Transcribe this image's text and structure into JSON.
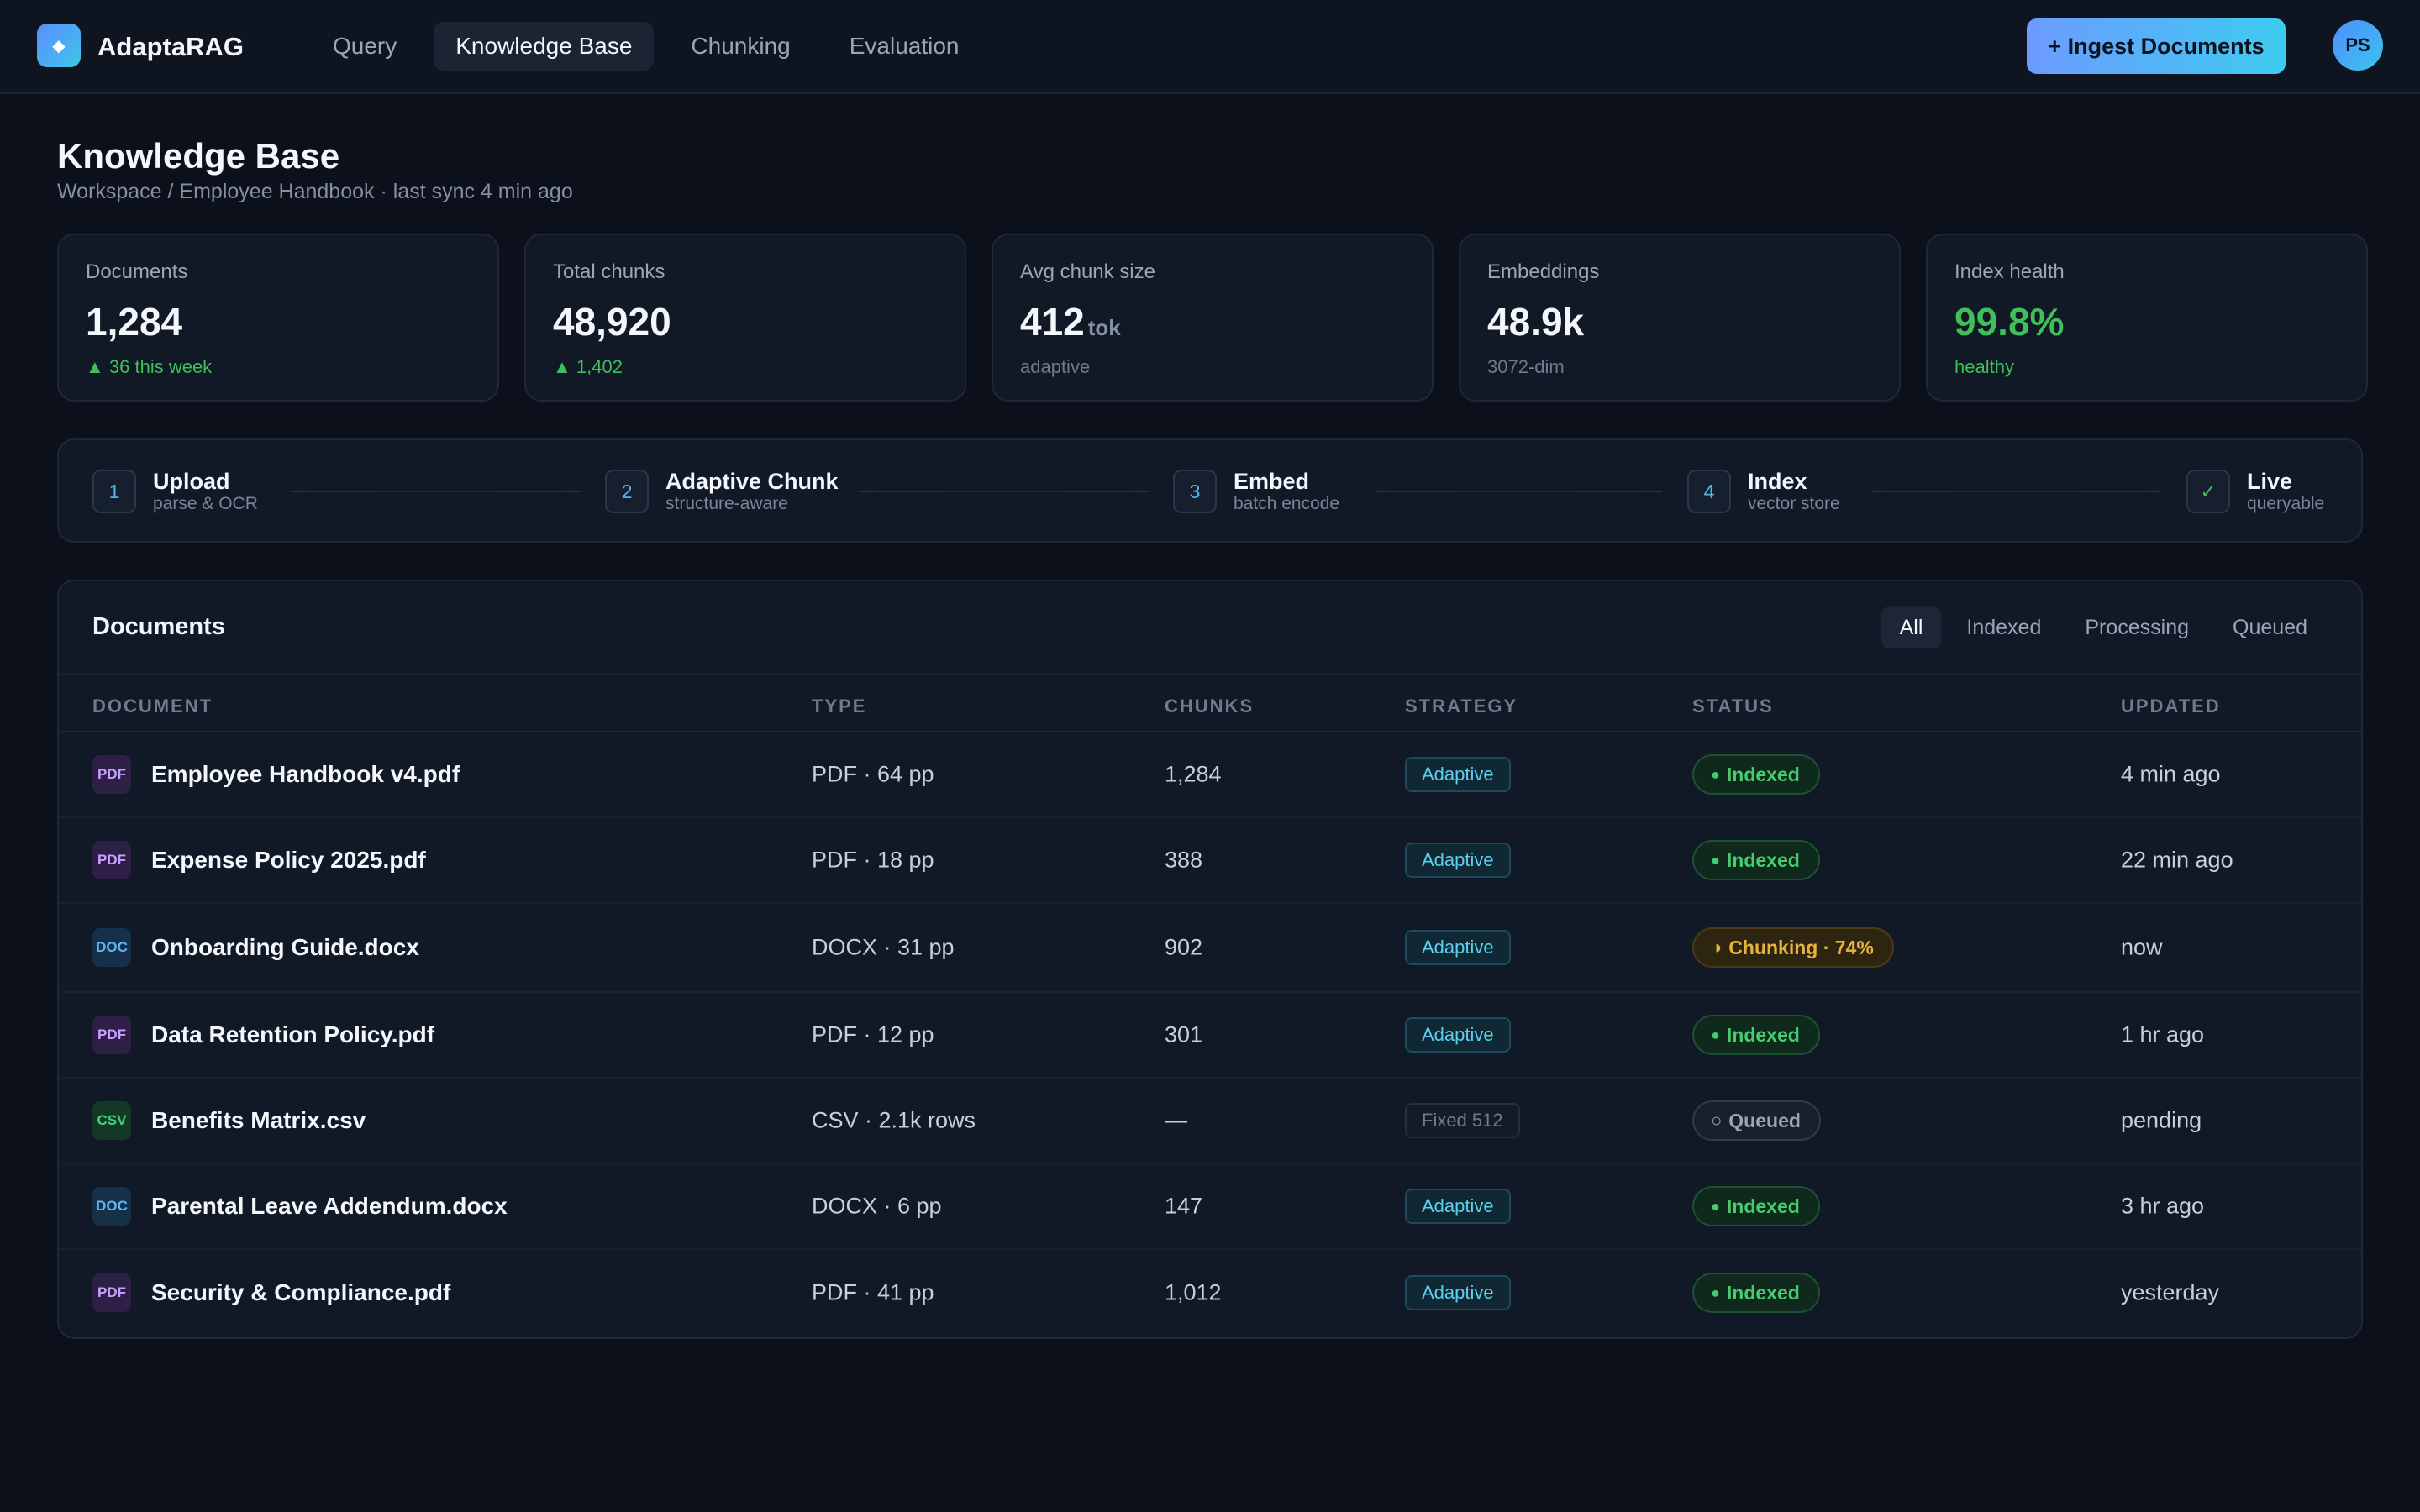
{
  "app": {
    "name": "AdaptaRAG",
    "logo_glyph": "◆"
  },
  "nav": {
    "tabs": [
      "Query",
      "Knowledge Base",
      "Chunking",
      "Evaluation"
    ],
    "active": "Knowledge Base"
  },
  "header": {
    "ingest_label": "+ Ingest Documents",
    "avatar_initials": "PS"
  },
  "page": {
    "title": "Knowledge Base",
    "subtitle": "Workspace / Employee Handbook · last sync 4 min ago"
  },
  "stats": [
    {
      "label": "Documents",
      "value": "1,284",
      "unit": "",
      "sub": "▲ 36 this week",
      "sub_tone": "green",
      "value_tone": ""
    },
    {
      "label": "Total chunks",
      "value": "48,920",
      "unit": "",
      "sub": "▲ 1,402",
      "sub_tone": "green",
      "value_tone": ""
    },
    {
      "label": "Avg chunk size",
      "value": "412",
      "unit": "tok",
      "sub": "adaptive",
      "sub_tone": "",
      "value_tone": ""
    },
    {
      "label": "Embeddings",
      "value": "48.9k",
      "unit": "",
      "sub": "3072-dim",
      "sub_tone": "",
      "value_tone": ""
    },
    {
      "label": "Index health",
      "value": "99.8%",
      "unit": "",
      "sub": "healthy",
      "sub_tone": "green",
      "value_tone": "green"
    }
  ],
  "pipeline": [
    {
      "num": "1",
      "title": "Upload",
      "desc": "parse & OCR"
    },
    {
      "num": "2",
      "title": "Adaptive Chunk",
      "desc": "structure-aware"
    },
    {
      "num": "3",
      "title": "Embed",
      "desc": "batch encode"
    },
    {
      "num": "4",
      "title": "Index",
      "desc": "vector store"
    },
    {
      "num": "✓",
      "title": "Live",
      "desc": "queryable"
    }
  ],
  "documents": {
    "title": "Documents",
    "filters": [
      "All",
      "Indexed",
      "Processing",
      "Queued"
    ],
    "active_filter": "All",
    "columns": [
      "DOCUMENT",
      "TYPE",
      "CHUNKS",
      "STRATEGY",
      "STATUS",
      "UPDATED"
    ],
    "rows": [
      {
        "icon": "PDF",
        "kind": "pdf",
        "name": "Employee Handbook v4.pdf",
        "type": "PDF · 64 pp",
        "chunks": "1,284",
        "strategy": "Adaptive",
        "strategy_kind": "adaptive",
        "status": "Indexed",
        "status_kind": "indexed",
        "status_glyph": "●",
        "updated": "4 min ago"
      },
      {
        "icon": "PDF",
        "kind": "pdf",
        "name": "Expense Policy 2025.pdf",
        "type": "PDF · 18 pp",
        "chunks": "388",
        "strategy": "Adaptive",
        "strategy_kind": "adaptive",
        "status": "Indexed",
        "status_kind": "indexed",
        "status_glyph": "●",
        "updated": "22 min ago"
      },
      {
        "icon": "DOC",
        "kind": "doc",
        "name": "Onboarding Guide.docx",
        "type": "DOCX · 31 pp",
        "chunks": "902",
        "strategy": "Adaptive",
        "strategy_kind": "adaptive",
        "status": "Chunking · 74%",
        "status_kind": "chunking",
        "status_glyph": "◑",
        "updated": "now"
      },
      {
        "icon": "PDF",
        "kind": "pdf",
        "name": "Data Retention Policy.pdf",
        "type": "PDF · 12 pp",
        "chunks": "301",
        "strategy": "Adaptive",
        "strategy_kind": "adaptive",
        "status": "Indexed",
        "status_kind": "indexed",
        "status_glyph": "●",
        "updated": "1 hr ago"
      },
      {
        "icon": "CSV",
        "kind": "csv",
        "name": "Benefits Matrix.csv",
        "type": "CSV · 2.1k rows",
        "chunks": "—",
        "strategy": "Fixed 512",
        "strategy_kind": "fixed",
        "status": "Queued",
        "status_kind": "queued",
        "status_glyph": "○",
        "updated": "pending"
      },
      {
        "icon": "DOC",
        "kind": "doc",
        "name": "Parental Leave Addendum.docx",
        "type": "DOCX · 6 pp",
        "chunks": "147",
        "strategy": "Adaptive",
        "strategy_kind": "adaptive",
        "status": "Indexed",
        "status_kind": "indexed",
        "status_glyph": "●",
        "updated": "3 hr ago"
      },
      {
        "icon": "PDF",
        "kind": "pdf",
        "name": "Security & Compliance.pdf",
        "type": "PDF · 41 pp",
        "chunks": "1,012",
        "strategy": "Adaptive",
        "strategy_kind": "adaptive",
        "status": "Indexed",
        "status_kind": "indexed",
        "status_glyph": "●",
        "updated": "yesterday"
      }
    ]
  }
}
